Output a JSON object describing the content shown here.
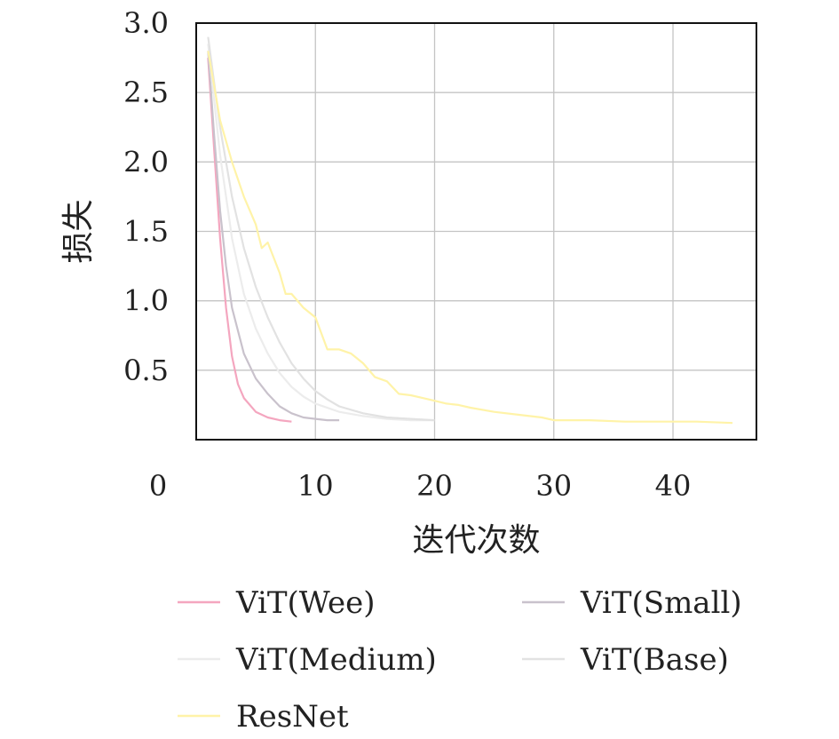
{
  "chart_data": {
    "type": "line",
    "title": "",
    "xlabel": "迭代次数",
    "ylabel": "损失",
    "xlim": [
      0,
      47
    ],
    "ylim": [
      0,
      3.0
    ],
    "x_ticks": [
      {
        "value": 0,
        "label": "0"
      },
      {
        "value": 10,
        "label": "10"
      },
      {
        "value": 20,
        "label": "20"
      },
      {
        "value": 30,
        "label": "30"
      },
      {
        "value": 40,
        "label": "40"
      }
    ],
    "y_ticks": [
      {
        "value": 0.5,
        "label": "0.5"
      },
      {
        "value": 1.0,
        "label": "1.0"
      },
      {
        "value": 1.5,
        "label": "1.5"
      },
      {
        "value": 2.0,
        "label": "2.0"
      },
      {
        "value": 2.5,
        "label": "2.5"
      },
      {
        "value": 3.0,
        "label": "3.0"
      }
    ],
    "grid": true,
    "legend_position": "below",
    "series": [
      {
        "name": "ViT(Wee)",
        "color": "#f4a6bf",
        "x": [
          1,
          1.5,
          2,
          2.5,
          3,
          3.5,
          4,
          5,
          6,
          7,
          8
        ],
        "y": [
          2.75,
          2.1,
          1.45,
          0.95,
          0.6,
          0.4,
          0.3,
          0.2,
          0.16,
          0.14,
          0.13
        ]
      },
      {
        "name": "ViT(Small)",
        "color": "#c9c2cc",
        "x": [
          1,
          1.5,
          2,
          2.5,
          3,
          4,
          5,
          6,
          7,
          8,
          9,
          10,
          11,
          12
        ],
        "y": [
          2.8,
          2.2,
          1.65,
          1.25,
          0.95,
          0.62,
          0.44,
          0.33,
          0.24,
          0.19,
          0.16,
          0.15,
          0.14,
          0.14
        ]
      },
      {
        "name": "ViT(Medium)",
        "color": "#ececec",
        "x": [
          1,
          2,
          3,
          4,
          5,
          6,
          7,
          8,
          9,
          10,
          12,
          14,
          16,
          18,
          20
        ],
        "y": [
          2.85,
          2.05,
          1.45,
          1.05,
          0.8,
          0.62,
          0.48,
          0.38,
          0.31,
          0.26,
          0.2,
          0.17,
          0.15,
          0.14,
          0.14
        ]
      },
      {
        "name": "ViT(Base)",
        "color": "#e2e2e2",
        "x": [
          1,
          2,
          3,
          4,
          5,
          6,
          7,
          8,
          9,
          10,
          11,
          12,
          14,
          16,
          18,
          20
        ],
        "y": [
          2.9,
          2.25,
          1.75,
          1.38,
          1.1,
          0.88,
          0.7,
          0.55,
          0.44,
          0.35,
          0.29,
          0.24,
          0.19,
          0.16,
          0.15,
          0.14
        ]
      },
      {
        "name": "ResNet",
        "color": "#fff3a8",
        "x": [
          1,
          2,
          3,
          4,
          5,
          5.5,
          6,
          7,
          7.5,
          8,
          9,
          10,
          11,
          12,
          13,
          14,
          15,
          16,
          17,
          18,
          19,
          20,
          21,
          22,
          23,
          25,
          27,
          29,
          30,
          33,
          36,
          39,
          42,
          45
        ],
        "y": [
          2.8,
          2.3,
          2.0,
          1.75,
          1.55,
          1.38,
          1.42,
          1.2,
          1.05,
          1.05,
          0.95,
          0.88,
          0.65,
          0.65,
          0.62,
          0.55,
          0.45,
          0.42,
          0.33,
          0.32,
          0.3,
          0.28,
          0.26,
          0.25,
          0.23,
          0.2,
          0.18,
          0.16,
          0.14,
          0.14,
          0.13,
          0.13,
          0.13,
          0.12
        ]
      }
    ]
  }
}
